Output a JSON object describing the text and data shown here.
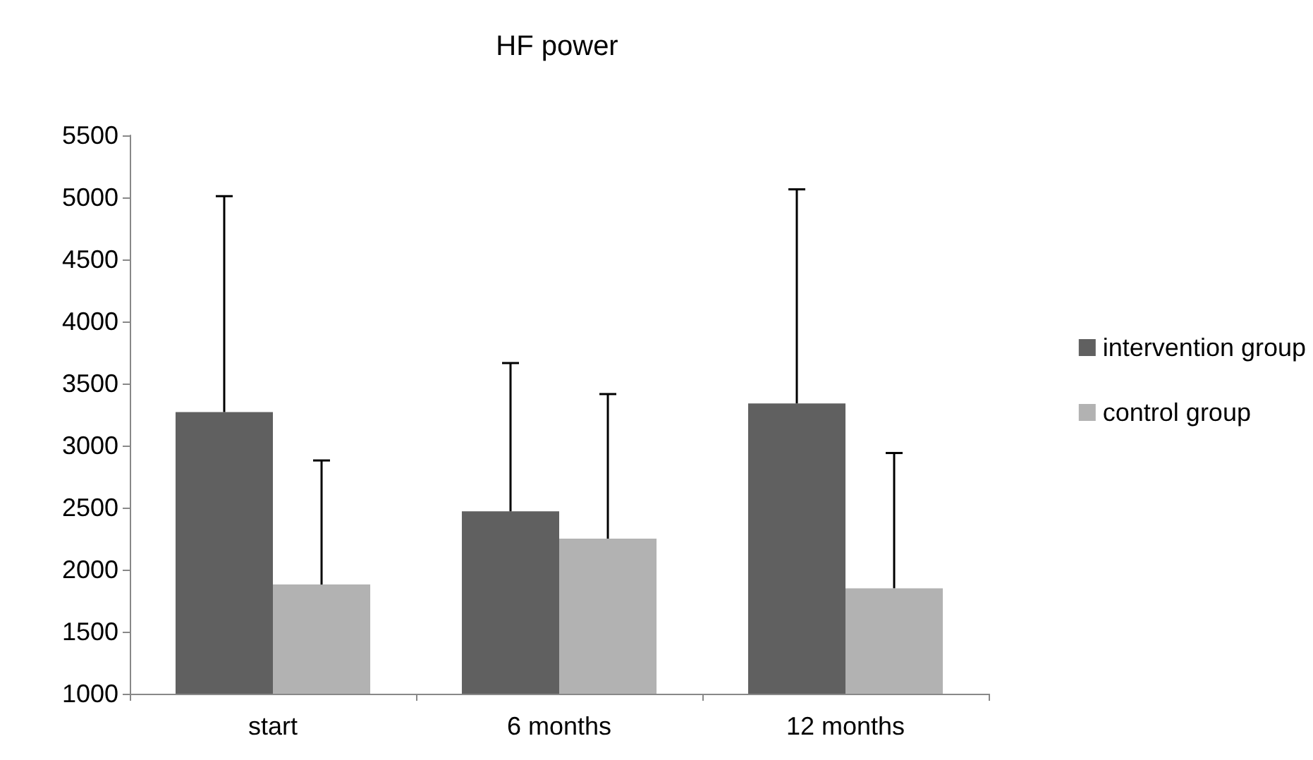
{
  "chart_data": {
    "type": "bar",
    "title": "HF power",
    "categories": [
      "start",
      "6 months",
      "12 months"
    ],
    "series": [
      {
        "name": "intervention group",
        "color": "#606060",
        "values": [
          3270,
          2470,
          3340
        ],
        "errors": [
          [
            3270,
            5010
          ],
          [
            2470,
            3665
          ],
          [
            3340,
            5065
          ]
        ]
      },
      {
        "name": "control group",
        "color": "#b2b2b2",
        "values": [
          1880,
          2250,
          1850
        ],
        "errors": [
          [
            1880,
            2880
          ],
          [
            2250,
            3415
          ],
          [
            1850,
            2940
          ]
        ]
      }
    ],
    "ylim": [
      1000,
      5500
    ],
    "yticks": [
      1000,
      1500,
      2000,
      2500,
      3000,
      3500,
      4000,
      4500,
      5000,
      5500
    ],
    "grid": false,
    "legend": "right"
  }
}
